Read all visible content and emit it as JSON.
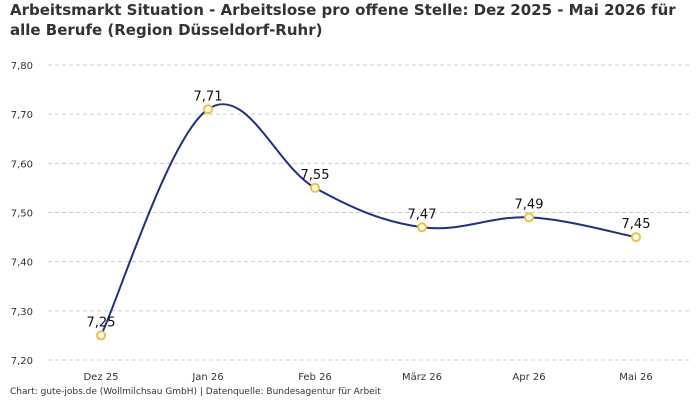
{
  "title": "Arbeitsmarkt Situation - Arbeitslose pro offene Stelle: Dez 2025 - Mai 2026 für alle Berufe (Region Düsseldorf-Ruhr)",
  "source": "Chart: gute-jobs.de (Wollmilchsau GmbH) | Datenquelle: Bundesagentur für Arbeit",
  "colors": {
    "line": "#1f2f8c",
    "marker": "#f2c232",
    "grid": "#cccccc"
  },
  "chart_data": {
    "type": "line",
    "categories": [
      "Dez 25",
      "Jan 26",
      "Feb 26",
      "März 26",
      "Apr 26",
      "Mai 26"
    ],
    "values": [
      7.25,
      7.71,
      7.55,
      7.47,
      7.49,
      7.45
    ],
    "data_labels": [
      "7,25",
      "7,71",
      "7,55",
      "7,47",
      "7,49",
      "7,45"
    ],
    "y_ticks": [
      "7,20",
      "7,30",
      "7,40",
      "7,50",
      "7,60",
      "7,70",
      "7,80"
    ],
    "ylim": [
      7.2,
      7.8
    ],
    "grid": "horizontal dashed",
    "smooth": true
  }
}
